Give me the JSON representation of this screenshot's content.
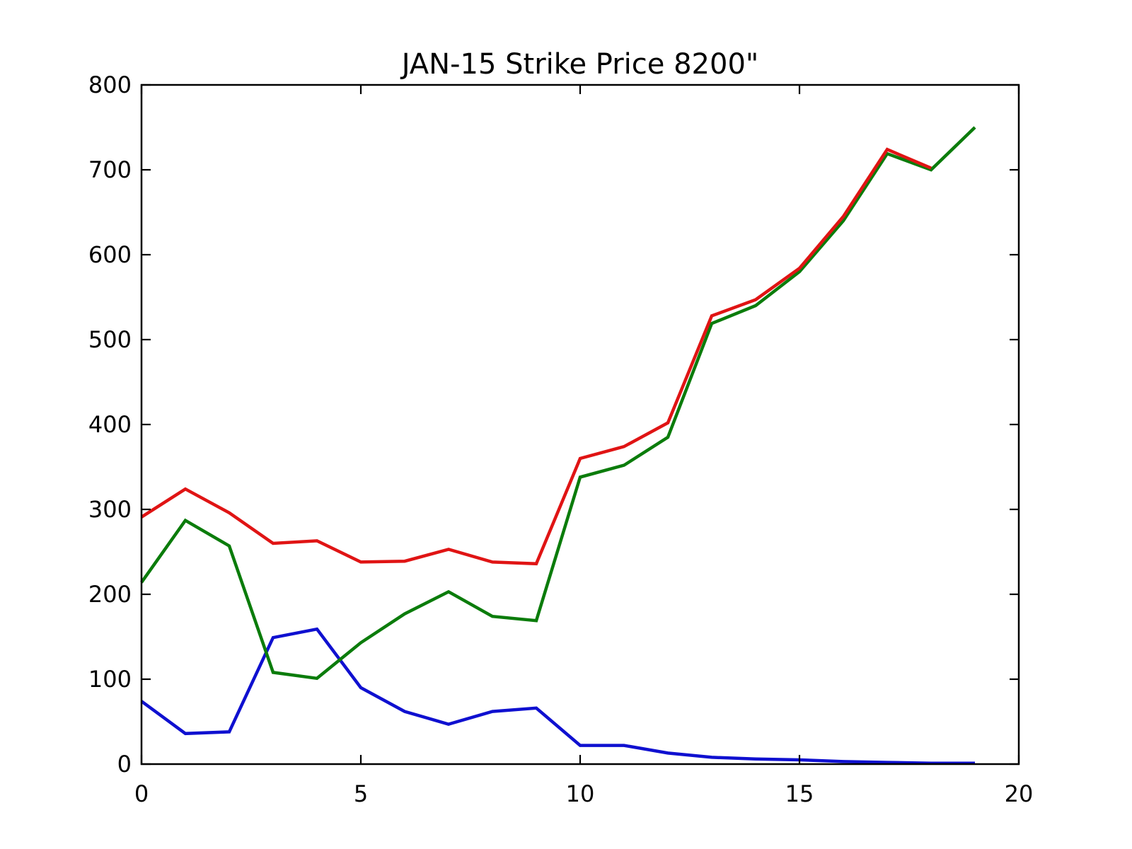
{
  "chart_data": {
    "type": "line",
    "title": "JAN-15 Strike Price 8200\"",
    "xlabel": "",
    "ylabel": "",
    "xlim": [
      0,
      20
    ],
    "ylim": [
      0,
      800
    ],
    "x_ticks": [
      0,
      5,
      10,
      15,
      20
    ],
    "y_ticks": [
      0,
      100,
      200,
      300,
      400,
      500,
      600,
      700,
      800
    ],
    "grid": false,
    "legend": "none",
    "box": true,
    "tick_direction": "in",
    "background": "#ffffff",
    "axis_color": "#000000",
    "series": [
      {
        "name": "blue-series",
        "color": "#0f10d0",
        "x": [
          0,
          1,
          2,
          3,
          4,
          5,
          6,
          7,
          8,
          9,
          10,
          11,
          12,
          13,
          14,
          15,
          16,
          17,
          18,
          19
        ],
        "values": [
          74,
          36,
          38,
          149,
          159,
          90,
          62,
          47,
          62,
          66,
          22,
          22,
          13,
          8,
          6,
          5,
          3,
          2,
          1,
          1
        ]
      },
      {
        "name": "green-series",
        "color": "#0b7c0b",
        "x": [
          0,
          1,
          2,
          3,
          4,
          5,
          6,
          7,
          8,
          9,
          10,
          11,
          12,
          13,
          14,
          15,
          16,
          17,
          18,
          19
        ],
        "values": [
          214,
          287,
          257,
          108,
          101,
          143,
          177,
          203,
          174,
          169,
          338,
          352,
          385,
          519,
          540,
          580,
          640,
          719,
          700,
          750
        ]
      },
      {
        "name": "red-series",
        "color": "#e01414",
        "x": [
          0,
          1,
          2,
          3,
          4,
          5,
          6,
          7,
          8,
          9,
          10,
          11,
          12,
          13,
          14,
          15,
          16,
          17,
          18
        ],
        "values": [
          291,
          324,
          296,
          260,
          263,
          238,
          239,
          253,
          238,
          236,
          360,
          374,
          402,
          528,
          547,
          584,
          645,
          724,
          702
        ]
      }
    ]
  }
}
